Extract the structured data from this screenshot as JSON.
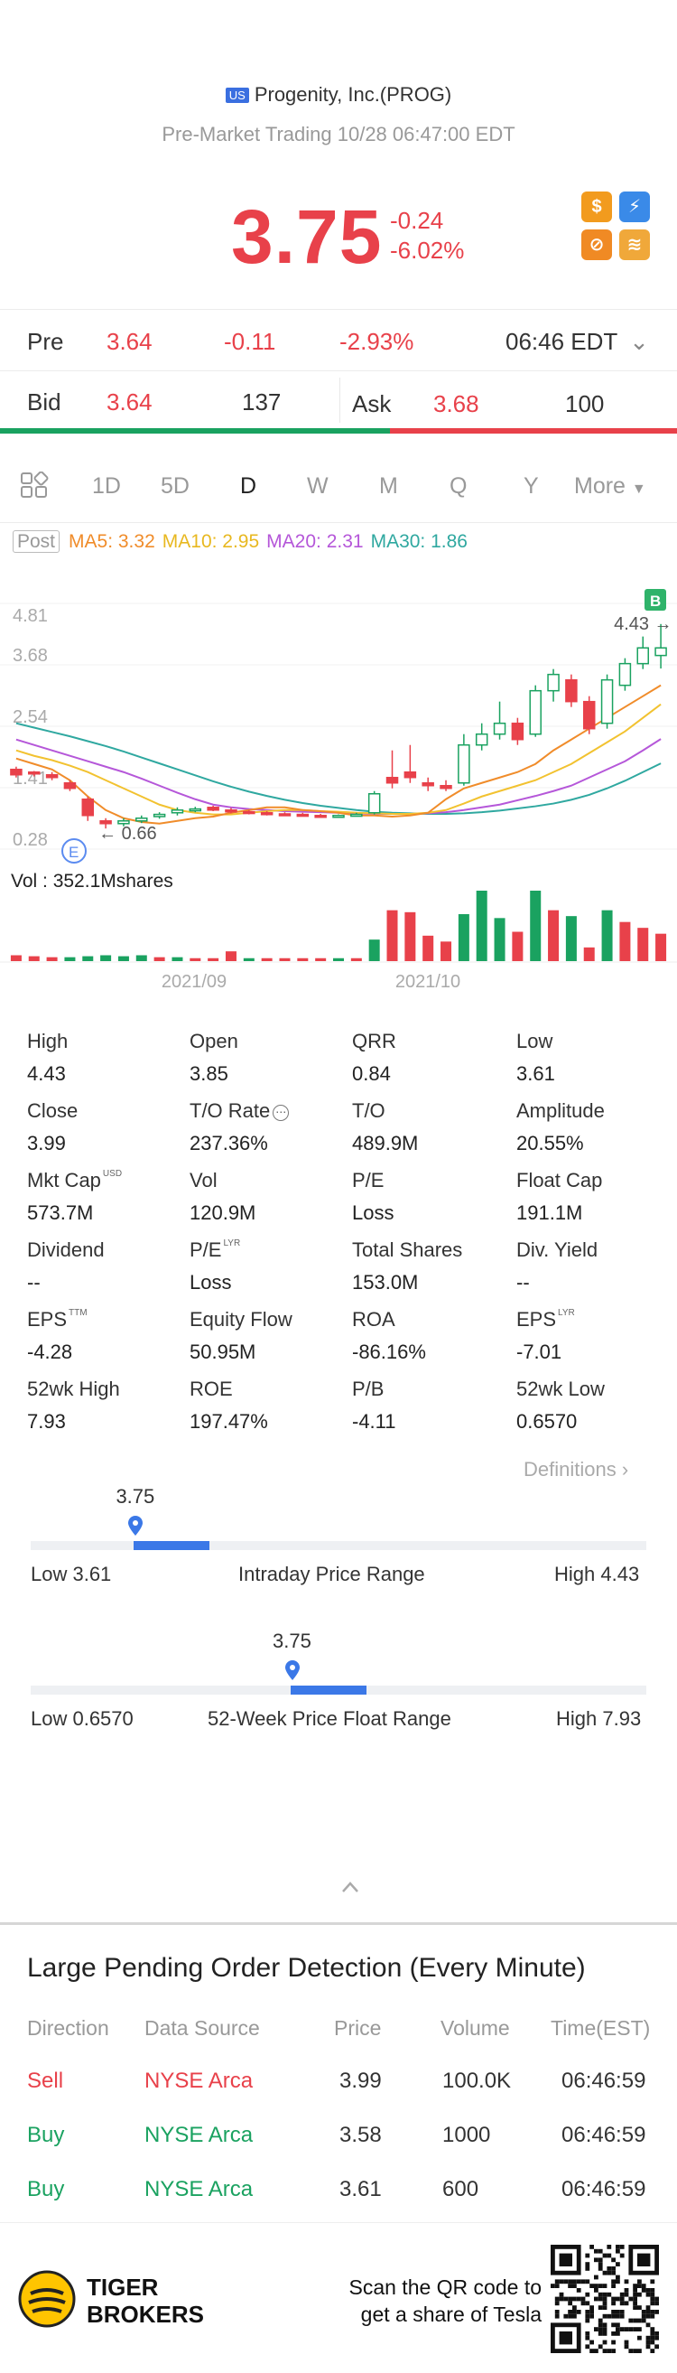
{
  "header": {
    "flag": "US",
    "name": "Progenity, Inc.(PROG)",
    "subtitle": "Pre-Market Trading 10/28 06:47:00 EDT"
  },
  "quote": {
    "price": "3.75",
    "change": "-0.24",
    "change_pct": "-6.02%"
  },
  "pre_row": {
    "label": "Pre",
    "price": "3.64",
    "change": "-0.11",
    "change_pct": "-2.93%",
    "time": "06:46 EDT"
  },
  "bid_row": {
    "bid_label": "Bid",
    "bid_price": "3.64",
    "bid_size": "137",
    "ask_label": "Ask",
    "ask_price": "3.68",
    "ask_size": "100"
  },
  "tabs": [
    "1D",
    "5D",
    "D",
    "W",
    "M",
    "Q",
    "Y",
    "More"
  ],
  "active_tab": "D",
  "chart_legend": {
    "post": "Post",
    "ma5": "MA5: 3.32",
    "ma10": "MA10: 2.95",
    "ma20": "MA20: 2.31",
    "ma30": "MA30: 1.86",
    "colors": {
      "ma5": "#f08c2a",
      "ma10": "#f2c230",
      "ma20": "#b557d9",
      "ma30": "#2fa8a0",
      "up": "#1aa260",
      "down": "#e8414a"
    }
  },
  "chart_data": {
    "type": "candlestick",
    "y_ticks": [
      "4.81",
      "3.68",
      "2.54",
      "1.41",
      "0.28"
    ],
    "high_label": "4.43",
    "low_label": "0.66",
    "volume_label": "Vol  : 352.1Mshares",
    "x_labels": [
      "2021/09",
      "2021/10"
    ],
    "badge_b": "B",
    "badge_e": "E",
    "ma5": [
      1.95,
      1.85,
      1.75,
      1.55,
      1.25,
      1.0,
      0.85,
      0.78,
      0.75,
      0.8,
      0.85,
      0.88,
      0.95,
      1.0,
      1.05,
      1.05,
      1.0,
      0.98,
      0.95,
      0.9,
      0.9,
      0.88,
      0.9,
      0.95,
      1.2,
      1.4,
      1.5,
      1.6,
      1.7,
      1.85,
      2.1,
      2.3,
      2.5,
      2.7,
      2.9,
      3.1,
      3.3
    ],
    "ma10": [
      2.1,
      2.0,
      1.92,
      1.82,
      1.7,
      1.55,
      1.4,
      1.25,
      1.1,
      1.0,
      0.95,
      0.92,
      0.92,
      0.95,
      0.98,
      1.0,
      1.0,
      0.98,
      0.97,
      0.95,
      0.94,
      0.93,
      0.93,
      0.95,
      1.0,
      1.12,
      1.25,
      1.35,
      1.45,
      1.55,
      1.7,
      1.85,
      2.05,
      2.25,
      2.45,
      2.7,
      2.95
    ],
    "ma20": [
      2.3,
      2.2,
      2.1,
      2.0,
      1.9,
      1.8,
      1.7,
      1.58,
      1.45,
      1.32,
      1.2,
      1.1,
      1.05,
      1.02,
      1.0,
      0.98,
      0.97,
      0.96,
      0.95,
      0.94,
      0.93,
      0.93,
      0.93,
      0.94,
      0.96,
      1.0,
      1.05,
      1.1,
      1.18,
      1.26,
      1.35,
      1.45,
      1.6,
      1.75,
      1.9,
      2.1,
      2.31
    ],
    "ma30": [
      2.6,
      2.52,
      2.44,
      2.36,
      2.27,
      2.18,
      2.08,
      1.97,
      1.86,
      1.75,
      1.64,
      1.53,
      1.43,
      1.34,
      1.26,
      1.19,
      1.13,
      1.08,
      1.04,
      1.0,
      0.97,
      0.95,
      0.94,
      0.93,
      0.93,
      0.94,
      0.96,
      0.99,
      1.03,
      1.07,
      1.12,
      1.19,
      1.28,
      1.4,
      1.54,
      1.7,
      1.86
    ],
    "candles": [
      {
        "o": 1.75,
        "c": 1.65,
        "h": 1.8,
        "l": 1.6
      },
      {
        "o": 1.7,
        "c": 1.68,
        "h": 1.72,
        "l": 1.62
      },
      {
        "o": 1.65,
        "c": 1.6,
        "h": 1.7,
        "l": 1.55
      },
      {
        "o": 1.5,
        "c": 1.4,
        "h": 1.55,
        "l": 1.35
      },
      {
        "o": 1.2,
        "c": 0.9,
        "h": 1.25,
        "l": 0.8
      },
      {
        "o": 0.8,
        "c": 0.75,
        "h": 0.85,
        "l": 0.66
      },
      {
        "o": 0.75,
        "c": 0.8,
        "h": 0.85,
        "l": 0.7
      },
      {
        "o": 0.8,
        "c": 0.85,
        "h": 0.9,
        "l": 0.76
      },
      {
        "o": 0.88,
        "c": 0.92,
        "h": 0.96,
        "l": 0.84
      },
      {
        "o": 0.95,
        "c": 1.0,
        "h": 1.05,
        "l": 0.9
      },
      {
        "o": 1.0,
        "c": 1.02,
        "h": 1.06,
        "l": 0.96
      },
      {
        "o": 1.05,
        "c": 1.0,
        "h": 1.08,
        "l": 0.98
      },
      {
        "o": 1.0,
        "c": 0.97,
        "h": 1.04,
        "l": 0.94
      },
      {
        "o": 0.97,
        "c": 0.95,
        "h": 1.0,
        "l": 0.92
      },
      {
        "o": 0.95,
        "c": 0.93,
        "h": 0.98,
        "l": 0.9
      },
      {
        "o": 0.93,
        "c": 0.92,
        "h": 0.96,
        "l": 0.9
      },
      {
        "o": 0.92,
        "c": 0.9,
        "h": 0.95,
        "l": 0.88
      },
      {
        "o": 0.9,
        "c": 0.89,
        "h": 0.93,
        "l": 0.87
      },
      {
        "o": 0.89,
        "c": 0.9,
        "h": 0.92,
        "l": 0.87
      },
      {
        "o": 0.9,
        "c": 0.92,
        "h": 0.95,
        "l": 0.88
      },
      {
        "o": 0.95,
        "c": 1.3,
        "h": 1.35,
        "l": 0.92
      },
      {
        "o": 1.6,
        "c": 1.5,
        "h": 2.1,
        "l": 1.4
      },
      {
        "o": 1.7,
        "c": 1.6,
        "h": 2.2,
        "l": 1.5
      },
      {
        "o": 1.5,
        "c": 1.45,
        "h": 1.6,
        "l": 1.35
      },
      {
        "o": 1.45,
        "c": 1.4,
        "h": 1.55,
        "l": 1.35
      },
      {
        "o": 1.5,
        "c": 2.2,
        "h": 2.4,
        "l": 1.45
      },
      {
        "o": 2.2,
        "c": 2.4,
        "h": 2.6,
        "l": 2.1
      },
      {
        "o": 2.4,
        "c": 2.6,
        "h": 3.0,
        "l": 2.3
      },
      {
        "o": 2.6,
        "c": 2.3,
        "h": 2.7,
        "l": 2.2
      },
      {
        "o": 2.4,
        "c": 3.2,
        "h": 3.3,
        "l": 2.35
      },
      {
        "o": 3.2,
        "c": 3.5,
        "h": 3.6,
        "l": 3.0
      },
      {
        "o": 3.4,
        "c": 3.0,
        "h": 3.5,
        "l": 2.9
      },
      {
        "o": 3.0,
        "c": 2.5,
        "h": 3.1,
        "l": 2.4
      },
      {
        "o": 2.6,
        "c": 3.4,
        "h": 3.5,
        "l": 2.5
      },
      {
        "o": 3.3,
        "c": 3.7,
        "h": 3.8,
        "l": 3.2
      },
      {
        "o": 3.7,
        "c": 3.99,
        "h": 4.2,
        "l": 3.6
      },
      {
        "o": 3.85,
        "c": 3.99,
        "h": 4.43,
        "l": 3.61
      }
    ],
    "volume": [
      {
        "v": 6,
        "d": "down"
      },
      {
        "v": 5,
        "d": "down"
      },
      {
        "v": 4,
        "d": "down"
      },
      {
        "v": 4,
        "d": "green"
      },
      {
        "v": 5,
        "d": "green"
      },
      {
        "v": 6,
        "d": "green"
      },
      {
        "v": 5,
        "d": "green"
      },
      {
        "v": 6,
        "d": "green"
      },
      {
        "v": 4,
        "d": "down"
      },
      {
        "v": 4,
        "d": "green"
      },
      {
        "v": 3,
        "d": "down"
      },
      {
        "v": 3,
        "d": "down"
      },
      {
        "v": 10,
        "d": "down"
      },
      {
        "v": 3,
        "d": "green"
      },
      {
        "v": 3,
        "d": "down"
      },
      {
        "v": 3,
        "d": "down"
      },
      {
        "v": 3,
        "d": "down"
      },
      {
        "v": 3,
        "d": "down"
      },
      {
        "v": 3,
        "d": "green"
      },
      {
        "v": 3,
        "d": "down"
      },
      {
        "v": 22,
        "d": "green"
      },
      {
        "v": 52,
        "d": "down"
      },
      {
        "v": 50,
        "d": "down"
      },
      {
        "v": 26,
        "d": "down"
      },
      {
        "v": 20,
        "d": "down"
      },
      {
        "v": 48,
        "d": "green"
      },
      {
        "v": 72,
        "d": "green"
      },
      {
        "v": 44,
        "d": "green"
      },
      {
        "v": 30,
        "d": "down"
      },
      {
        "v": 72,
        "d": "green"
      },
      {
        "v": 52,
        "d": "down"
      },
      {
        "v": 46,
        "d": "green"
      },
      {
        "v": 14,
        "d": "down"
      },
      {
        "v": 52,
        "d": "green"
      },
      {
        "v": 40,
        "d": "down"
      },
      {
        "v": 34,
        "d": "down"
      },
      {
        "v": 28,
        "d": "down"
      }
    ]
  },
  "stats": [
    [
      {
        "label": "High",
        "value": "4.43"
      },
      {
        "label": "Open",
        "value": "3.85"
      },
      {
        "label": "QRR",
        "value": "0.84"
      },
      {
        "label": "Low",
        "value": "3.61"
      }
    ],
    [
      {
        "label": "Close",
        "value": "3.99"
      },
      {
        "label": "T/O Rate",
        "value": "237.36%"
      },
      {
        "label": "T/O",
        "value": "489.9M"
      },
      {
        "label": "Amplitude",
        "value": "20.55%"
      }
    ],
    [
      {
        "label": "Mkt Cap",
        "value": "573.7M",
        "sup": "USD"
      },
      {
        "label": "Vol",
        "value": "120.9M"
      },
      {
        "label": "P/E",
        "value": "Loss"
      },
      {
        "label": "Float Cap",
        "value": "191.1M"
      }
    ],
    [
      {
        "label": "Dividend",
        "value": "--"
      },
      {
        "label": "P/E",
        "value": "Loss",
        "sup": "LYR"
      },
      {
        "label": "Total Shares",
        "value": "153.0M"
      },
      {
        "label": "Div. Yield",
        "value": "--"
      }
    ],
    [
      {
        "label": "EPS",
        "value": "-4.28",
        "sup": "TTM"
      },
      {
        "label": "Equity Flow",
        "value": "50.95M"
      },
      {
        "label": "ROA",
        "value": "-86.16%"
      },
      {
        "label": "EPS",
        "value": "-7.01",
        "sup": "LYR"
      }
    ],
    [
      {
        "label": "52wk High",
        "value": "7.93"
      },
      {
        "label": "ROE",
        "value": "197.47%"
      },
      {
        "label": "P/B",
        "value": "-4.11"
      },
      {
        "label": "52wk Low",
        "value": "0.6570"
      }
    ]
  ],
  "definitions": "Definitions",
  "intraday_range": {
    "current": "3.75",
    "low": "Low 3.61",
    "high": "High 4.43",
    "title": "Intraday Price Range",
    "low_val": 3.61,
    "high_val": 4.43,
    "cur_val": 3.75
  },
  "week52_range": {
    "current": "3.75",
    "low": "Low 0.6570",
    "high": "High 7.93",
    "title": "52-Week Price Float Range",
    "low_val": 0.657,
    "high_val": 7.93,
    "cur_val": 3.75
  },
  "pending": {
    "title": "Large Pending Order Detection (Every Minute)",
    "headers": [
      "Direction",
      "Data Source",
      "Price",
      "Volume",
      "Time(EST)"
    ],
    "rows": [
      {
        "direction": "Sell",
        "source": "NYSE Arca",
        "price": "3.99",
        "volume": "100.0K",
        "time": "06:46:59",
        "side": "sell"
      },
      {
        "direction": "Buy",
        "source": "NYSE Arca",
        "price": "3.58",
        "volume": "1000",
        "time": "06:46:59",
        "side": "buy"
      },
      {
        "direction": "Buy",
        "source": "NYSE Arca",
        "price": "3.61",
        "volume": "600",
        "time": "06:46:59",
        "side": "buy"
      }
    ]
  },
  "footer": {
    "brand_line1": "TIGER",
    "brand_line2": "BROKERS",
    "promo_line1": "Scan the QR code to",
    "promo_line2": "get a share of Tesla"
  }
}
